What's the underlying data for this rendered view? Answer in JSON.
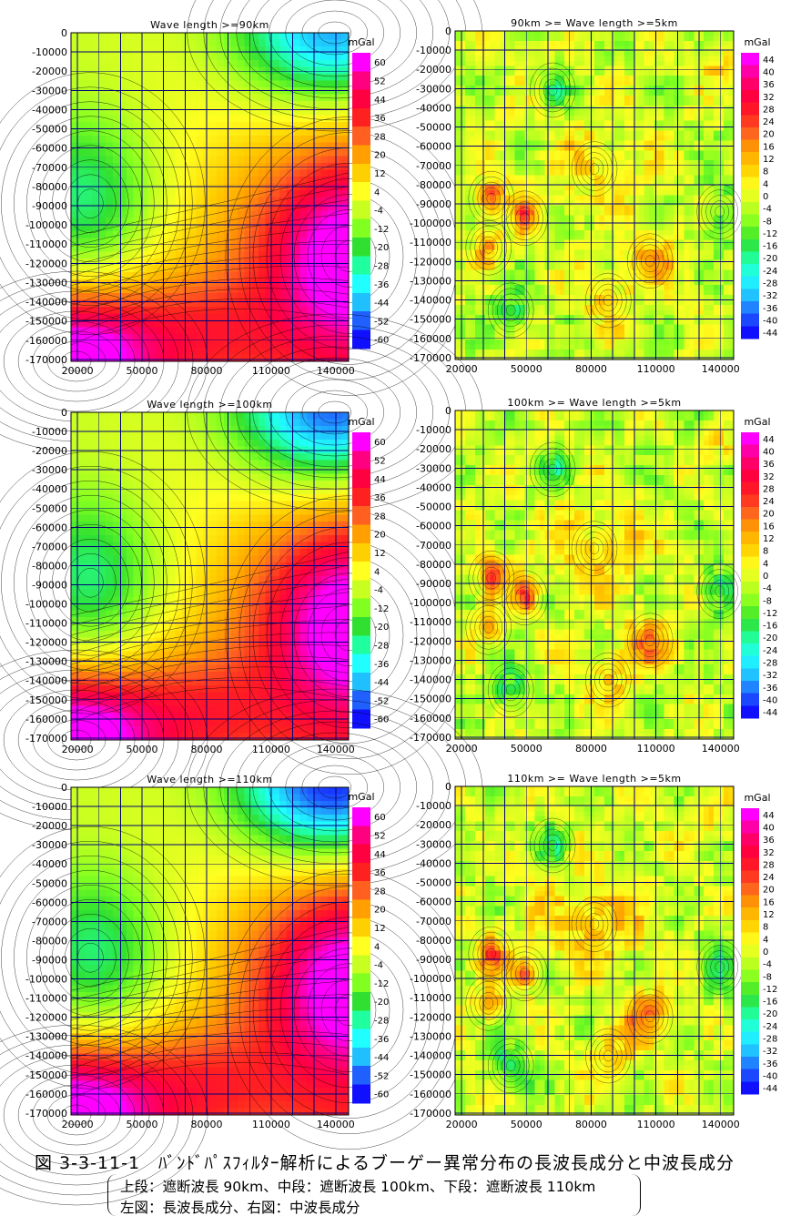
{
  "panels": [
    {
      "id": "p1",
      "title": "Wave length >=90km",
      "kind": "long",
      "variant": 0
    },
    {
      "id": "p2",
      "title": "90km >= Wave length >=5km",
      "kind": "mid",
      "variant": 0
    },
    {
      "id": "p3",
      "title": "Wave length >=100km",
      "kind": "long",
      "variant": 1
    },
    {
      "id": "p4",
      "title": "100km >= Wave length >=5km",
      "kind": "mid",
      "variant": 1
    },
    {
      "id": "p5",
      "title": "Wave length >=110km",
      "kind": "long",
      "variant": 2
    },
    {
      "id": "p6",
      "title": "110km >= Wave length >=5km",
      "kind": "mid",
      "variant": 2
    }
  ],
  "chart_data": [
    {
      "type": "heatmap",
      "title": "Wave length >=90km",
      "unit": "mGal",
      "x_ticks": [
        20000,
        50000,
        80000,
        110000,
        140000
      ],
      "y_ticks": [
        0,
        -10000,
        -20000,
        -30000,
        -40000,
        -50000,
        -60000,
        -70000,
        -80000,
        -90000,
        -100000,
        -110000,
        -120000,
        -130000,
        -140000,
        -150000,
        -160000,
        -170000
      ],
      "xlim": [
        17000,
        146000
      ],
      "ylim": [
        -171000,
        0
      ],
      "colorbar": {
        "ticks": [
          60,
          52,
          44,
          36,
          28,
          20,
          12,
          4,
          -4,
          -12,
          -20,
          -28,
          -36,
          -44,
          -52,
          -60
        ]
      },
      "features": {
        "low_west": [
          30000,
          -92000,
          -30
        ],
        "low_northeast": [
          140000,
          -5000,
          -50
        ],
        "high_southwest": [
          20000,
          -165000,
          60
        ],
        "high_southeast": [
          146000,
          -120000,
          48
        ]
      }
    },
    {
      "type": "heatmap",
      "title": "90km >= Wave length >=5km",
      "unit": "mGal",
      "x_ticks": [
        20000,
        50000,
        80000,
        110000,
        140000
      ],
      "y_ticks": [
        0,
        -10000,
        -20000,
        -30000,
        -40000,
        -50000,
        -60000,
        -70000,
        -80000,
        -90000,
        -100000,
        -110000,
        -120000,
        -130000,
        -140000,
        -150000,
        -160000,
        -170000
      ],
      "xlim": [
        17000,
        146000
      ],
      "ylim": [
        -171000,
        0
      ],
      "colorbar": {
        "ticks": [
          44,
          40,
          36,
          32,
          28,
          24,
          20,
          16,
          12,
          8,
          4,
          0,
          -4,
          -8,
          -12,
          -16,
          -20,
          -24,
          -28,
          -32,
          -36,
          -40,
          -44
        ]
      }
    },
    {
      "type": "heatmap",
      "title": "Wave length >=100km",
      "unit": "mGal",
      "x_ticks": [
        20000,
        50000,
        80000,
        110000,
        140000
      ],
      "y_ticks": [
        0,
        -10000,
        -20000,
        -30000,
        -40000,
        -50000,
        -60000,
        -70000,
        -80000,
        -90000,
        -100000,
        -110000,
        -120000,
        -130000,
        -140000,
        -150000,
        -160000,
        -170000
      ],
      "xlim": [
        17000,
        146000
      ],
      "ylim": [
        -171000,
        0
      ],
      "colorbar": {
        "ticks": [
          60,
          52,
          44,
          36,
          28,
          20,
          12,
          4,
          -4,
          -12,
          -20,
          -28,
          -36,
          -44,
          -52,
          -60
        ]
      }
    },
    {
      "type": "heatmap",
      "title": "100km >= Wave length >=5km",
      "unit": "mGal",
      "x_ticks": [
        20000,
        50000,
        80000,
        110000,
        140000
      ],
      "y_ticks": [
        0,
        -10000,
        -20000,
        -30000,
        -40000,
        -50000,
        -60000,
        -70000,
        -80000,
        -90000,
        -100000,
        -110000,
        -120000,
        -130000,
        -140000,
        -150000,
        -160000,
        -170000
      ],
      "xlim": [
        17000,
        146000
      ],
      "ylim": [
        -171000,
        0
      ],
      "colorbar": {
        "ticks": [
          44,
          40,
          36,
          32,
          28,
          24,
          20,
          16,
          12,
          8,
          4,
          0,
          -4,
          -8,
          -12,
          -16,
          -20,
          -24,
          -28,
          -32,
          -36,
          -40,
          -44
        ]
      }
    },
    {
      "type": "heatmap",
      "title": "Wave length >=110km",
      "unit": "mGal",
      "x_ticks": [
        20000,
        50000,
        80000,
        110000,
        140000
      ],
      "y_ticks": [
        0,
        -10000,
        -20000,
        -30000,
        -40000,
        -50000,
        -60000,
        -70000,
        -80000,
        -90000,
        -100000,
        -110000,
        -120000,
        -130000,
        -140000,
        -150000,
        -160000,
        -170000
      ],
      "xlim": [
        17000,
        146000
      ],
      "ylim": [
        -171000,
        0
      ],
      "colorbar": {
        "ticks": [
          60,
          52,
          44,
          36,
          28,
          20,
          12,
          4,
          -4,
          -12,
          -20,
          -28,
          -36,
          -44,
          -52,
          -60
        ]
      }
    },
    {
      "type": "heatmap",
      "title": "110km >= Wave length >=5km",
      "unit": "mGal",
      "x_ticks": [
        20000,
        50000,
        80000,
        110000,
        140000
      ],
      "y_ticks": [
        0,
        -10000,
        -20000,
        -30000,
        -40000,
        -50000,
        -60000,
        -70000,
        -80000,
        -90000,
        -100000,
        -110000,
        -120000,
        -130000,
        -140000,
        -150000,
        -160000,
        -170000
      ],
      "xlim": [
        17000,
        146000
      ],
      "ylim": [
        -171000,
        0
      ],
      "colorbar": {
        "ticks": [
          44,
          40,
          36,
          32,
          28,
          24,
          20,
          16,
          12,
          8,
          4,
          0,
          -4,
          -8,
          -12,
          -16,
          -20,
          -24,
          -28,
          -32,
          -36,
          -40,
          -44
        ]
      }
    }
  ],
  "colors": {
    "scale_high_to_low": [
      "#ff00ff",
      "#ff0080",
      "#ff0040",
      "#ff2020",
      "#ff6020",
      "#ffa000",
      "#ffd000",
      "#ffff20",
      "#c8ff20",
      "#80ff20",
      "#30e030",
      "#20ffa0",
      "#20ffff",
      "#20c0ff",
      "#2060ff",
      "#1010ff"
    ],
    "grid": "#00007a"
  },
  "caption": {
    "main": "図 3-3-11-1　ﾊﾞﾝﾄﾞﾊﾟｽﾌｨﾙﾀｰ解析によるブーゲー異常分布の長波長成分と中波長成分",
    "line1": "上段：遮断波長 90km、中段：遮断波長 100km、下段：遮断波長 110km",
    "line2": "左図：長波長成分、右図：中波長成分"
  }
}
